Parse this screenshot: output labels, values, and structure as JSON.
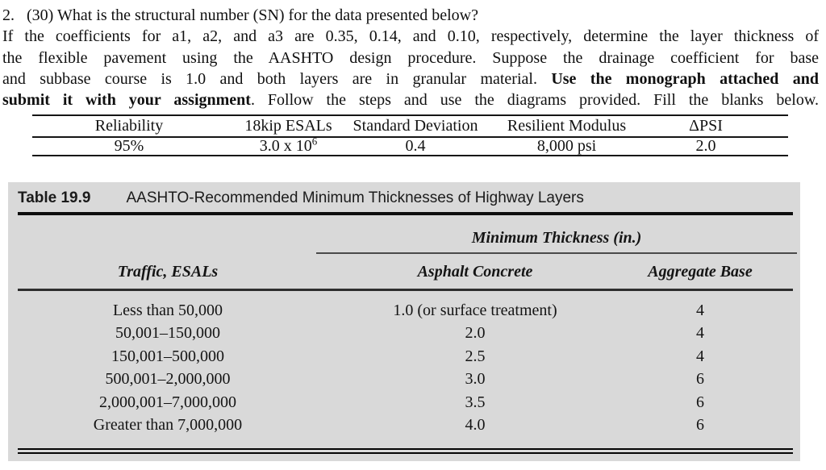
{
  "question": {
    "line1": "2.   (30) What is the structural number (SN) for the data presented below?",
    "line2": "If the coefficients for a1, a2, and a3 are 0.35, 0.14, and 0.10, respectively, determine the layer thickness of",
    "line3": "the flexible pavement using the AASHTO design procedure. Suppose the drainage coefficient for base",
    "line4_normal": "and subbase course is 1.0 and both layers are in granular material. ",
    "line4_bold": "Use the monograph attached and",
    "line5_bold": "submit it with your assignment",
    "line5_normal": ". Follow the steps and use the diagrams provided. Fill the blanks below."
  },
  "design_table": {
    "headers": [
      "Reliability",
      "18kip ESALs",
      "Standard Deviation",
      "Resilient Modulus",
      "ΔPSI"
    ],
    "values": {
      "reliability": "95%",
      "esals_base": "3.0 x 10",
      "esals_exponent": "6",
      "std_dev": "0.4",
      "resilient_modulus": "8,000 psi",
      "delta_psi": "2.0"
    }
  },
  "table_19_9": {
    "label": "Table 19.9",
    "title": "AASHTO-Recommended Minimum Thicknesses of Highway Layers",
    "span_header": "Minimum Thickness (in.)",
    "columns": [
      "Traffic, ESALs",
      "Asphalt Concrete",
      "Aggregate Base"
    ],
    "rows": [
      {
        "traffic": "Less than 50,000",
        "asphalt": "1.0 (or surface treatment)",
        "base": "4"
      },
      {
        "traffic": "50,001–150,000",
        "asphalt": "2.0",
        "base": "4"
      },
      {
        "traffic": "150,001–500,000",
        "asphalt": "2.5",
        "base": "4"
      },
      {
        "traffic": "500,001–2,000,000",
        "asphalt": "3.0",
        "base": "6"
      },
      {
        "traffic": "2,000,001–7,000,000",
        "asphalt": "3.5",
        "base": "6"
      },
      {
        "traffic": "Greater than 7,000,000",
        "asphalt": "4.0",
        "base": "6"
      }
    ]
  },
  "colors": {
    "panel_bg": "#d9d9d9",
    "text": "#111111"
  }
}
